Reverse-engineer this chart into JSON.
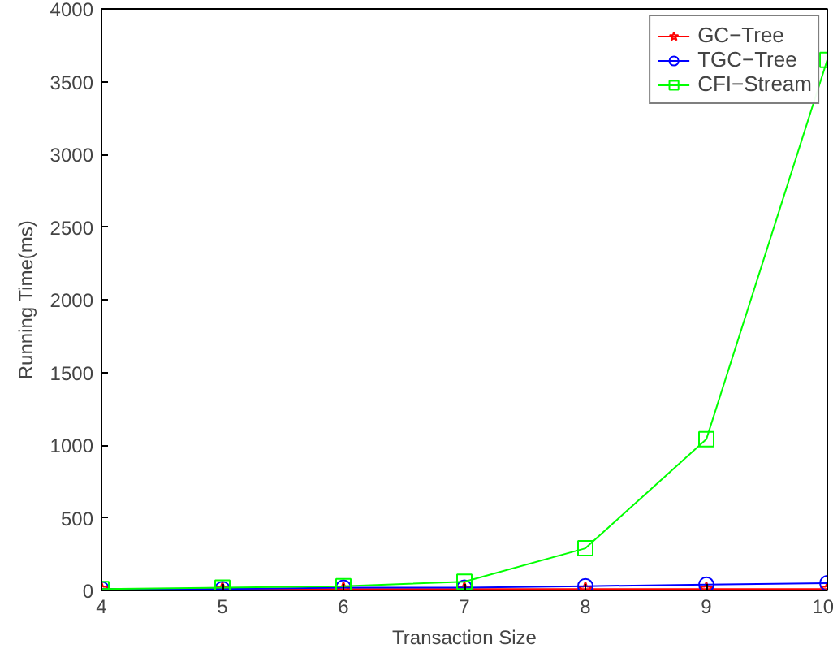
{
  "chart_data": {
    "type": "line",
    "xlabel": "Transaction Size",
    "ylabel": "Running Time(ms)",
    "x": [
      4,
      5,
      6,
      7,
      8,
      9,
      10
    ],
    "xlim": [
      4,
      10
    ],
    "xticks": [
      4,
      5,
      6,
      7,
      8,
      9,
      10
    ],
    "ylim": [
      0,
      4000
    ],
    "yticks": [
      0,
      500,
      1000,
      1500,
      2000,
      2500,
      3000,
      3500,
      4000
    ],
    "grid": false,
    "legend": "top right",
    "line_style": "solid",
    "series": [
      {
        "name": "GC−Tree",
        "color": "#ff0000",
        "marker": "star",
        "values": [
          10,
          10,
          10,
          10,
          10,
          10,
          10
        ]
      },
      {
        "name": "TGC−Tree",
        "color": "#0000ff",
        "marker": "circle",
        "values": [
          10,
          10,
          20,
          20,
          30,
          40,
          50
        ]
      },
      {
        "name": "CFI−Stream",
        "color": "#00ff00",
        "marker": "square",
        "values": [
          10,
          20,
          30,
          60,
          290,
          1040,
          3650
        ]
      }
    ]
  }
}
